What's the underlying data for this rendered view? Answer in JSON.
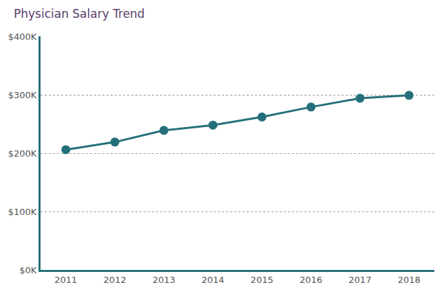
{
  "chart_data": {
    "type": "line",
    "title": "Physician Salary Trend",
    "categories": [
      "2011",
      "2012",
      "2013",
      "2014",
      "2015",
      "2016",
      "2017",
      "2018"
    ],
    "values": [
      206000,
      219000,
      239000,
      248000,
      262000,
      279000,
      294000,
      299000
    ],
    "color": "#24707a",
    "marker": "circle",
    "line_style": "solid",
    "ylim": [
      0,
      400000
    ],
    "yticks": [
      {
        "value": 0,
        "label": "$0K"
      },
      {
        "value": 100000,
        "label": "$100K"
      },
      {
        "value": 200000,
        "label": "$200K"
      },
      {
        "value": 300000,
        "label": "$300K"
      },
      {
        "value": 400000,
        "label": "$400K"
      }
    ],
    "grid": true
  }
}
